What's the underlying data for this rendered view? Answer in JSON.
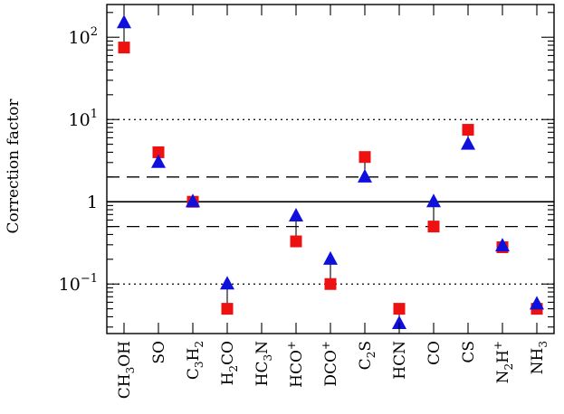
{
  "chart_data": {
    "type": "scatter",
    "ylabel": "Correction factor",
    "yscale": "log",
    "ylim": [
      0.025,
      250
    ],
    "yticks": [
      {
        "value": 0.1,
        "base": "10",
        "exp": "−1"
      },
      {
        "value": 1,
        "base": "1",
        "exp": ""
      },
      {
        "value": 10,
        "base": "10",
        "exp": "1"
      },
      {
        "value": 100,
        "base": "10",
        "exp": "2"
      }
    ],
    "categories": [
      {
        "parts": [
          {
            "t": "CH"
          },
          {
            "t": "3",
            "sub": true
          },
          {
            "t": "OH"
          }
        ]
      },
      {
        "parts": [
          {
            "t": "SO"
          }
        ]
      },
      {
        "parts": [
          {
            "t": "C"
          },
          {
            "t": "3",
            "sub": true
          },
          {
            "t": "H"
          },
          {
            "t": "2",
            "sub": true
          }
        ]
      },
      {
        "parts": [
          {
            "t": "H"
          },
          {
            "t": "2",
            "sub": true
          },
          {
            "t": "CO"
          }
        ]
      },
      {
        "parts": [
          {
            "t": "HC"
          },
          {
            "t": "3",
            "sub": true
          },
          {
            "t": "N"
          }
        ]
      },
      {
        "parts": [
          {
            "t": "HCO"
          },
          {
            "t": "+",
            "sup": true
          }
        ]
      },
      {
        "parts": [
          {
            "t": "DCO"
          },
          {
            "t": "+",
            "sup": true
          }
        ]
      },
      {
        "parts": [
          {
            "t": "C"
          },
          {
            "t": "2",
            "sub": true
          },
          {
            "t": "S"
          }
        ]
      },
      {
        "parts": [
          {
            "t": "HCN"
          }
        ]
      },
      {
        "parts": [
          {
            "t": "CO"
          }
        ]
      },
      {
        "parts": [
          {
            "t": "CS"
          }
        ]
      },
      {
        "parts": [
          {
            "t": "N"
          },
          {
            "t": "2",
            "sub": true
          },
          {
            "t": "H"
          },
          {
            "t": "+",
            "sup": true
          }
        ]
      },
      {
        "parts": [
          {
            "t": "NH"
          },
          {
            "t": "3",
            "sub": true
          }
        ]
      }
    ],
    "series": [
      {
        "marker": "square",
        "color": "#ee1111",
        "values": [
          75,
          4.0,
          1.0,
          0.05,
          null,
          0.33,
          0.1,
          3.5,
          0.05,
          0.5,
          7.5,
          0.28,
          0.05
        ]
      },
      {
        "marker": "triangle",
        "color": "#1010dd",
        "values": [
          150,
          3.0,
          1.0,
          0.1,
          null,
          0.67,
          0.2,
          2.0,
          0.033,
          1.0,
          5.0,
          0.29,
          0.057
        ]
      }
    ],
    "hlines": [
      {
        "y": 1,
        "style": "solid"
      },
      {
        "y": 2,
        "style": "dashed"
      },
      {
        "y": 0.5,
        "style": "dashed"
      },
      {
        "y": 10,
        "style": "dotted"
      },
      {
        "y": 0.1,
        "style": "dotted"
      }
    ],
    "grid": false,
    "legend": "none"
  }
}
